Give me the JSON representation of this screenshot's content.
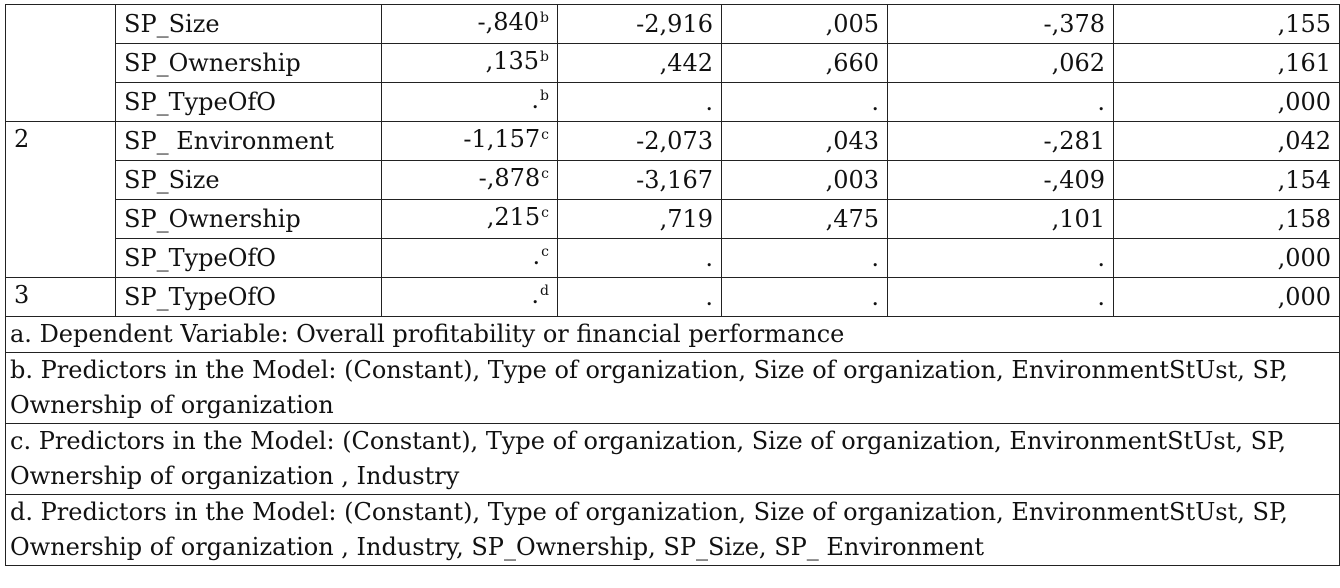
{
  "table": {
    "rows": [
      {
        "model": "",
        "variable": "SP_Size",
        "beta_in": "-,840",
        "beta_sup": "b",
        "t": "-2,916",
        "sig": ",005",
        "partial_corr": "-,378",
        "tolerance": ",155"
      },
      {
        "model": "",
        "variable": "SP_Ownership",
        "beta_in": ",135",
        "beta_sup": "b",
        "t": ",442",
        "sig": ",660",
        "partial_corr": ",062",
        "tolerance": ",161"
      },
      {
        "model": "",
        "variable": "SP_TypeOfO",
        "beta_in": ".",
        "beta_sup": "b",
        "t": ".",
        "sig": ".",
        "partial_corr": ".",
        "tolerance": ",000"
      },
      {
        "model": "2",
        "variable": "SP_ Environment",
        "beta_in": "-1,157",
        "beta_sup": "c",
        "t": "-2,073",
        "sig": ",043",
        "partial_corr": "-,281",
        "tolerance": ",042"
      },
      {
        "model": "",
        "variable": "SP_Size",
        "beta_in": "-,878",
        "beta_sup": "c",
        "t": "-3,167",
        "sig": ",003",
        "partial_corr": "-,409",
        "tolerance": ",154"
      },
      {
        "model": "",
        "variable": "SP_Ownership",
        "beta_in": ",215",
        "beta_sup": "c",
        "t": ",719",
        "sig": ",475",
        "partial_corr": ",101",
        "tolerance": ",158"
      },
      {
        "model": "",
        "variable": "SP_TypeOfO",
        "beta_in": ".",
        "beta_sup": "c",
        "t": ".",
        "sig": ".",
        "partial_corr": ".",
        "tolerance": ",000"
      },
      {
        "model": "3",
        "variable": "SP_TypeOfO",
        "beta_in": ".",
        "beta_sup": "d",
        "t": ".",
        "sig": ".",
        "partial_corr": ".",
        "tolerance": ",000"
      }
    ],
    "footnotes": {
      "a": "a. Dependent Variable: Overall profitability or financial performance",
      "b": "b. Predictors in the Model: (Constant), Type of organization, Size of organization, EnvironmentStUst, SP, Ownership of organization",
      "c": "c. Predictors in the Model: (Constant), Type of organization, Size of organization, EnvironmentStUst, SP, Ownership of organization , Industry",
      "d": "d. Predictors in the Model: (Constant), Type of organization, Size of organization, EnvironmentStUst, SP, Ownership of organization , Industry, SP_Ownership, SP_Size, SP_ Environment"
    }
  }
}
